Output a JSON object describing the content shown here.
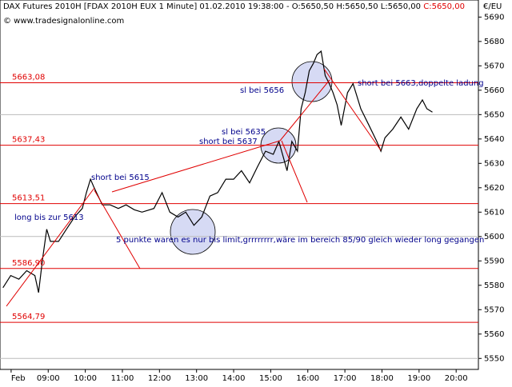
{
  "chart_data": {
    "type": "line",
    "title": "DAX Futures 2010H [FDAX 2010H EUX  1 Minute] 01.02.2010 19:38:00 - O:5650,50 H:5650,50 L:5650,00",
    "close_label": "C:5650,00",
    "subtitle": "© www.tradesignalonline.com",
    "y_unit": "€/EU",
    "color": "#000000",
    "x": [
      7.78,
      7.99,
      8.21,
      8.42,
      8.64,
      8.74,
      8.85,
      8.96,
      9.06,
      9.28,
      9.49,
      9.71,
      9.92,
      10.03,
      10.14,
      10.24,
      10.46,
      10.67,
      10.89,
      11.1,
      11.32,
      11.53,
      11.85,
      12.07,
      12.28,
      12.5,
      12.71,
      12.93,
      13.14,
      13.36,
      13.57,
      13.79,
      14.0,
      14.21,
      14.43,
      14.64,
      14.86,
      15.07,
      15.22,
      15.35,
      15.44,
      15.57,
      15.72,
      15.82,
      15.93,
      16.04,
      16.15,
      16.25,
      16.36,
      16.47,
      16.58,
      16.68,
      16.79,
      16.9,
      17.07,
      17.22,
      17.43,
      17.65,
      17.86,
      17.97,
      18.08,
      18.29,
      18.51,
      18.72,
      18.94,
      19.09,
      19.21,
      19.36
    ],
    "values": [
      5579,
      5584,
      5582.5,
      5586,
      5584,
      5577,
      5591,
      5603,
      5598,
      5598,
      5603,
      5608,
      5611.5,
      5618,
      5623.5,
      5620,
      5613,
      5613,
      5611.5,
      5613,
      5611,
      5610,
      5611.5,
      5618,
      5610,
      5608,
      5610,
      5604.6,
      5608,
      5616.6,
      5618,
      5623.5,
      5623.5,
      5627,
      5622,
      5628.5,
      5635,
      5633.7,
      5639,
      5632,
      5627,
      5639,
      5635,
      5652.4,
      5659,
      5668,
      5671,
      5674.6,
      5676,
      5666,
      5662.7,
      5659,
      5654,
      5645.6,
      5659,
      5662.7,
      5652.4,
      5645.6,
      5639,
      5635,
      5640.5,
      5644,
      5649,
      5644,
      5652.4,
      5656,
      5652.4,
      5651
    ],
    "xlim": [
      7.7,
      20.6
    ],
    "xticks": [
      {
        "value": 8,
        "label": "Feb"
      },
      {
        "value": 9,
        "label": "09:00"
      },
      {
        "value": 10,
        "label": "10:00"
      },
      {
        "value": 11,
        "label": "11:00"
      },
      {
        "value": 12,
        "label": "12:00"
      },
      {
        "value": 13,
        "label": "13:00"
      },
      {
        "value": 14,
        "label": "14:00"
      },
      {
        "value": 15,
        "label": "15:00"
      },
      {
        "value": 16,
        "label": "16:00"
      },
      {
        "value": 17,
        "label": "17:00"
      },
      {
        "value": 18,
        "label": "18:00"
      },
      {
        "value": 19,
        "label": "19:00"
      },
      {
        "value": 20,
        "label": "20:00"
      }
    ],
    "ylim": [
      5545.5,
      5697
    ],
    "yticks": [
      5550,
      5560,
      5570,
      5580,
      5590,
      5600,
      5610,
      5620,
      5630,
      5640,
      5650,
      5660,
      5670,
      5680,
      5690
    ],
    "grid_every": 50,
    "levels": [
      5663.08,
      5637.43,
      5613.51,
      5586.9,
      5564.79
    ],
    "level_labels": [
      "5663,08",
      "5637,43",
      "5613,51",
      "5586,90",
      "5564,79"
    ],
    "level_color": "#e00000",
    "annotations": [
      "long bis zur  5613",
      "short bei 5615",
      "5 punkte waren es nur bis limit,grrrrrrrr,wäre  im bereich 85/90 gleich wieder long gegangen",
      "sl bei 5635",
      "short bei 5637",
      "sl bei 5656",
      "short bei 5663,doppelte ladung"
    ]
  }
}
